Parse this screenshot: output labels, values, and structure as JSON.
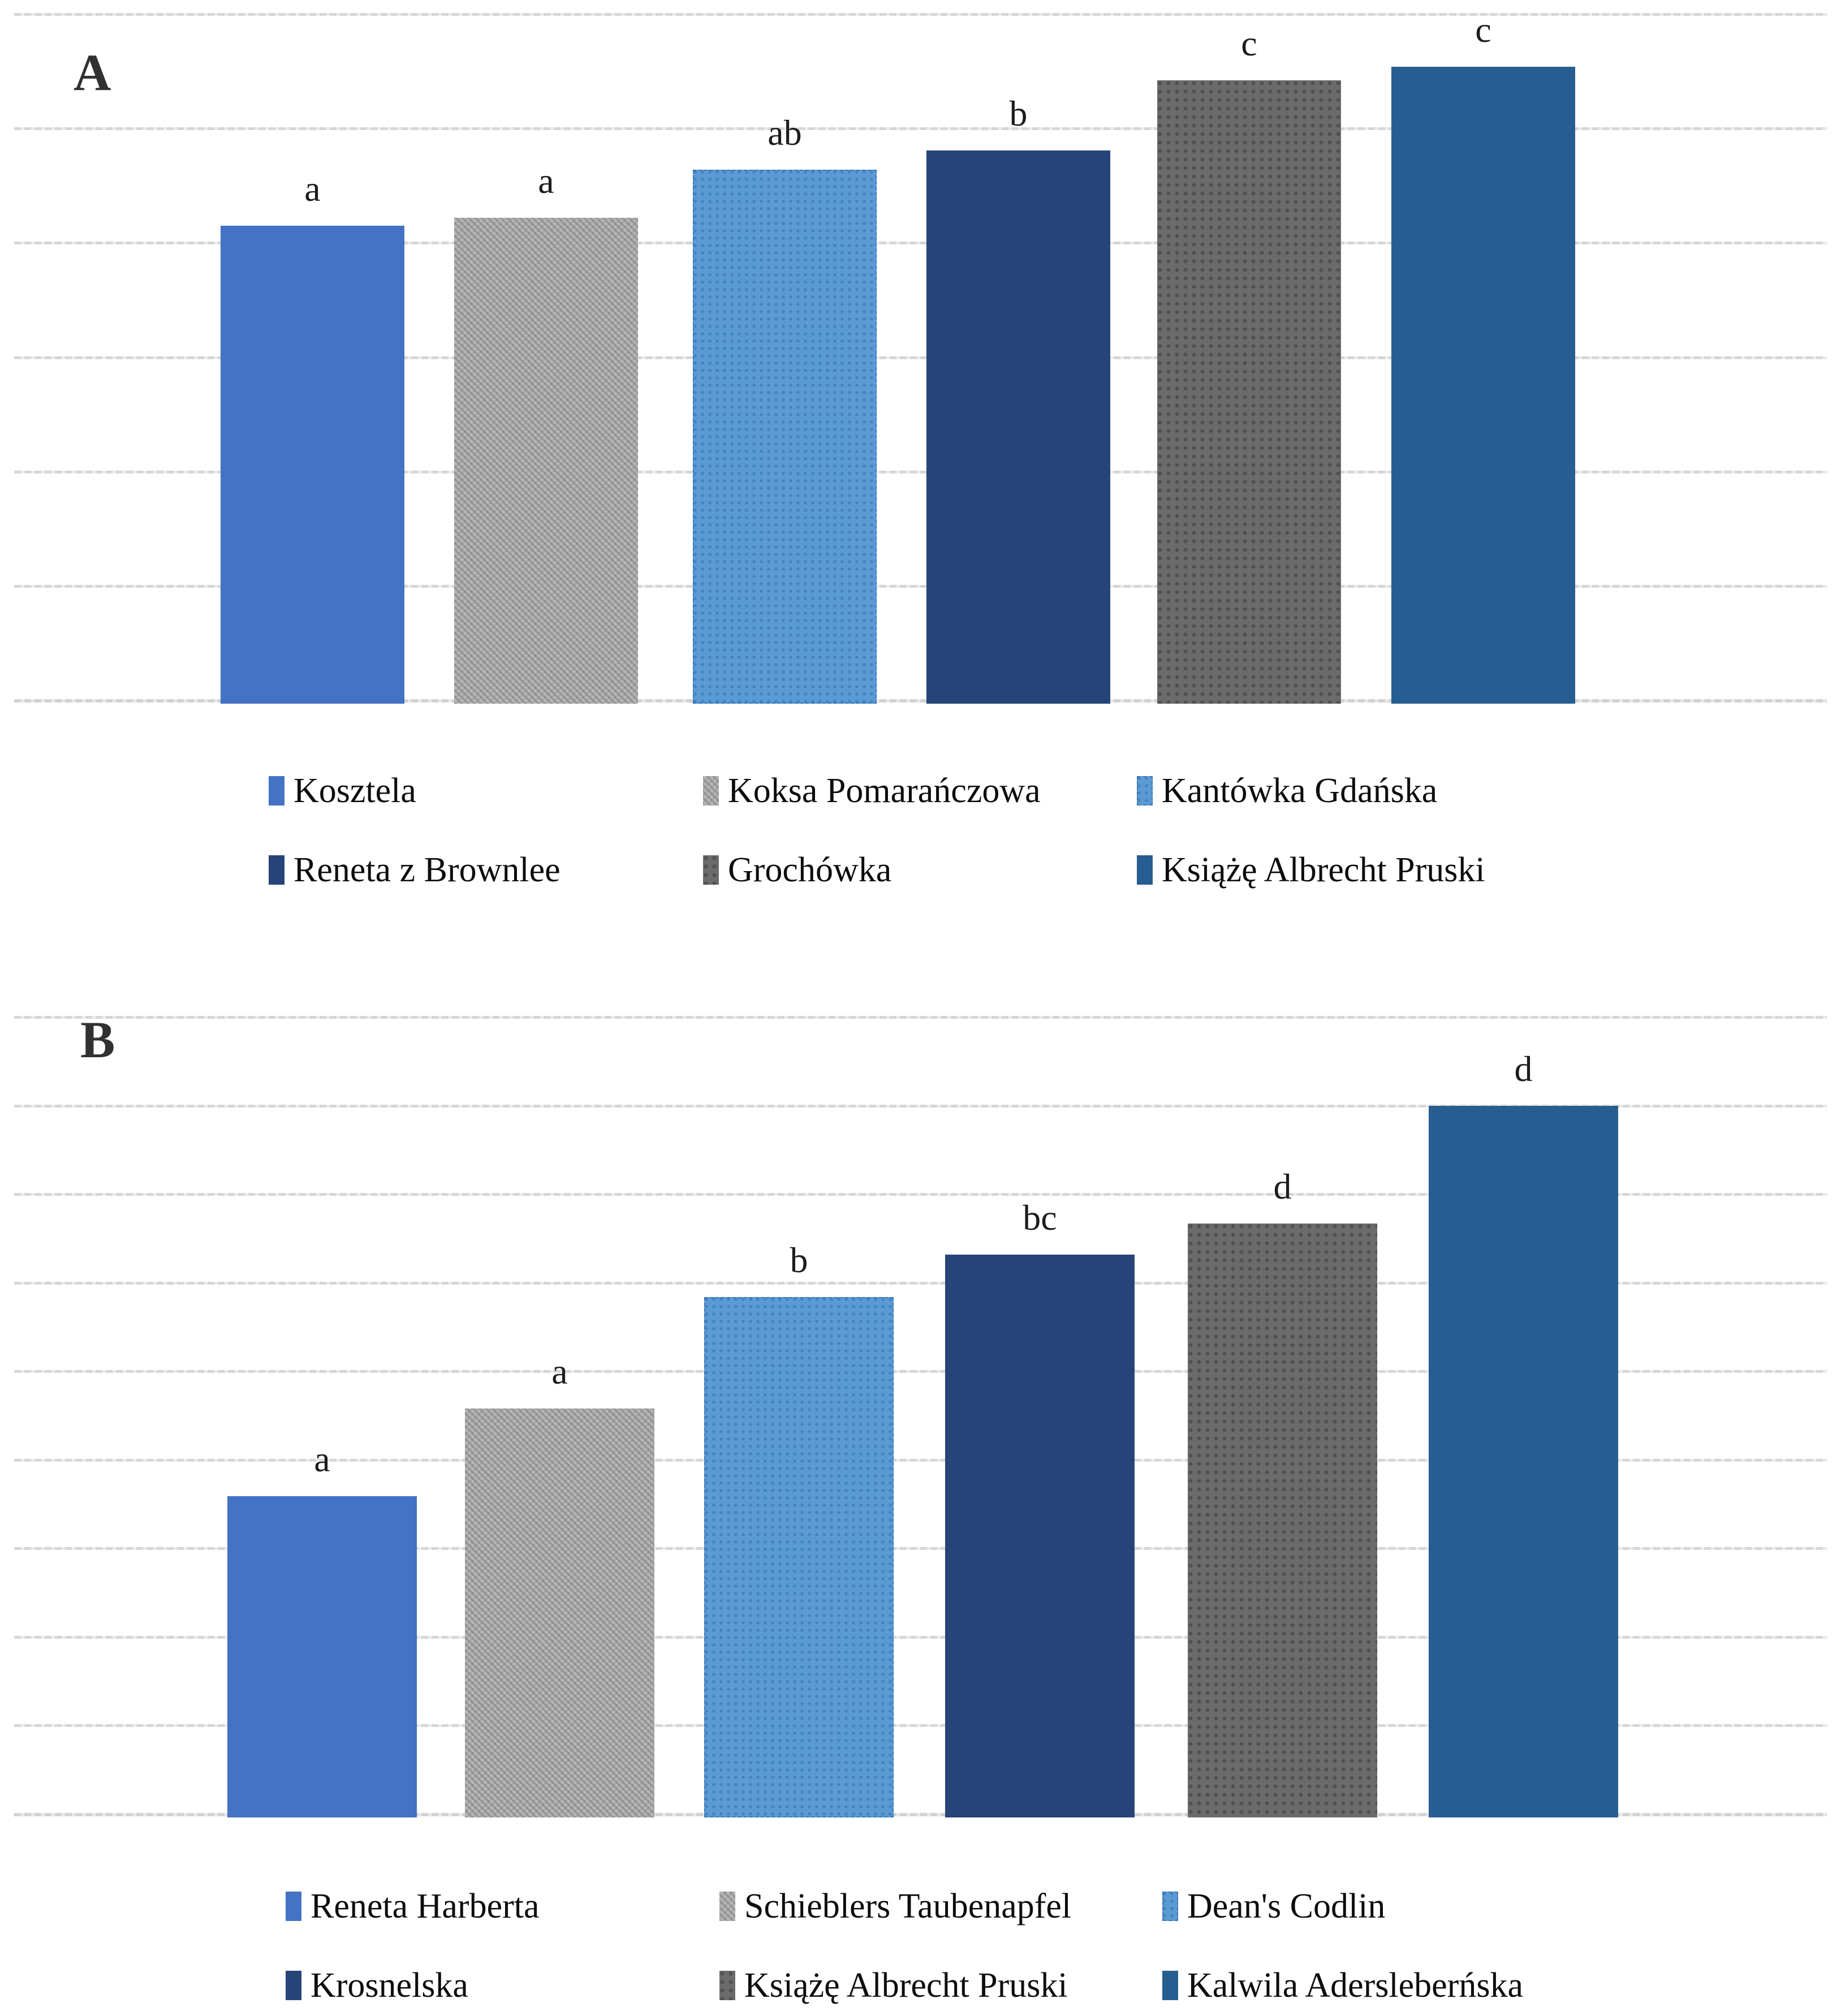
{
  "figure_background": "#FFFFFF",
  "gridline_color": "#D9D9D9",
  "chart_data": [
    {
      "type": "bar",
      "panel_label": "A",
      "title": "",
      "xlabel": "",
      "ylabel": "",
      "categories": [
        "Kosztela",
        "Koksa Pomarańczowa",
        "Kantówka Gdańska",
        "Reneta z Brownlee",
        "Grochówka",
        "Książę Albrecht Pruski"
      ],
      "values": [
        4.15,
        4.22,
        4.64,
        4.81,
        5.42,
        5.54
      ],
      "significance_letters": [
        "a",
        "a",
        "ab",
        "b",
        "c",
        "c"
      ],
      "colors": [
        "#4472C4",
        "#B5B5B5",
        "#5B9BD5",
        "#264478",
        "#6B6B6B",
        "#275E91"
      ],
      "patterns": [
        "solid",
        "diagonal-hatch",
        "dot-grid-light",
        "solid",
        "dot-grid-dark",
        "solid"
      ],
      "ylim": [
        0,
        6
      ],
      "gridline_count": 7,
      "y_tick_labels_visible": false,
      "grid": true,
      "legend_position": "bottom",
      "legend_rows": [
        [
          0,
          1,
          2
        ],
        [
          3,
          4,
          5
        ]
      ]
    },
    {
      "type": "bar",
      "panel_label": "B",
      "title": "",
      "xlabel": "",
      "ylabel": "",
      "categories": [
        "Reneta Harberta",
        "Schieblers Taubenapfel",
        "Dean's Codlin",
        "Krosnelska",
        "Książę Albrecht Pruski",
        "Kalwila Adersleberńska"
      ],
      "values": [
        3.59,
        4.58,
        5.84,
        6.32,
        6.67,
        8.0
      ],
      "significance_letters": [
        "a",
        "a",
        "b",
        "bc",
        "d",
        "d"
      ],
      "colors": [
        "#4472C4",
        "#B5B5B5",
        "#5B9BD5",
        "#264478",
        "#6B6B6B",
        "#275E91"
      ],
      "patterns": [
        "solid",
        "diagonal-hatch",
        "dot-grid-light",
        "solid",
        "dot-grid-dark",
        "solid"
      ],
      "ylim": [
        0,
        9
      ],
      "gridline_count": 10,
      "y_tick_labels_visible": false,
      "grid": true,
      "legend_position": "bottom",
      "legend_rows": [
        [
          0,
          1,
          2
        ],
        [
          3,
          4,
          5
        ]
      ]
    }
  ]
}
